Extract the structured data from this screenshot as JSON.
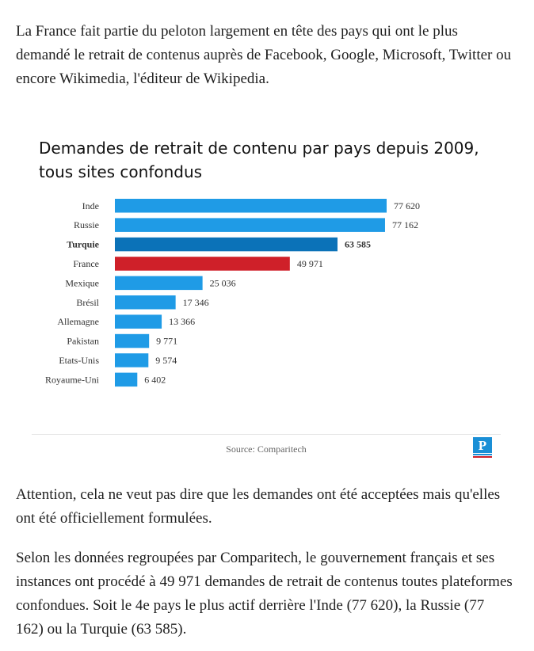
{
  "article": {
    "intro": "La France fait partie du peloton largement en tête des pays qui ont le plus demandé le retrait de contenus auprès de Facebook, Google, Microsoft, Twitter ou encore Wikimedia, l'éditeur de Wikipedia.",
    "attention": "Attention, cela ne veut pas dire que les demandes ont été acceptées mais qu'elles ont été officiellement formulées.",
    "details": "Selon les données regroupées par Comparitech, le gouvernement français et ses instances ont procédé à 49 971 demandes de retrait de contenus toutes plateformes confondues. Soit le 4e pays le plus actif derrière l'Inde (77 620), la Russie (77 162) ou la Turquie (63 585)."
  },
  "chart_data": {
    "type": "bar",
    "orientation": "horizontal",
    "title": "Demandes de retrait de contenu par pays depuis 2009, tous sites confondus",
    "categories": [
      "Inde",
      "Russie",
      "Turquie",
      "France",
      "Mexique",
      "Brésil",
      "Allemagne",
      "Pakistan",
      "Etats-Unis",
      "Royaume-Uni"
    ],
    "values": [
      77620,
      77162,
      63585,
      49971,
      25036,
      17346,
      13366,
      9771,
      9574,
      6402
    ],
    "value_labels": [
      "77 620",
      "77 162",
      "63 585",
      "49 971",
      "25 036",
      "17 346",
      "13 366",
      "9 771",
      "9 574",
      "6 402"
    ],
    "highlight": {
      "Turquie": "bold",
      "France": "red"
    },
    "colors": {
      "default": "#1f9be6",
      "emphasis": "#0b72b8",
      "france": "#cf2029"
    },
    "source": "Source: Comparitech",
    "grid": false,
    "legend": "none"
  },
  "branding": {
    "logo_icon": "le-parisien-logo-icon",
    "logo_letter": "P",
    "logo_color": "#1a8fd6"
  }
}
